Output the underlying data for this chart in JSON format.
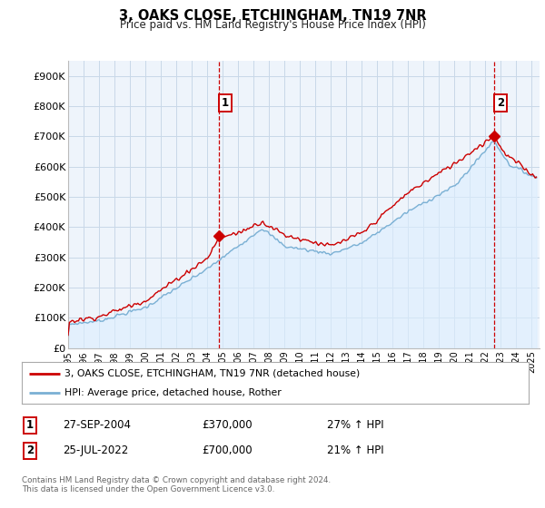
{
  "title": "3, OAKS CLOSE, ETCHINGHAM, TN19 7NR",
  "subtitle": "Price paid vs. HM Land Registry's House Price Index (HPI)",
  "ylabel_ticks": [
    "£0",
    "£100K",
    "£200K",
    "£300K",
    "£400K",
    "£500K",
    "£600K",
    "£700K",
    "£800K",
    "£900K"
  ],
  "ytick_values": [
    0,
    100000,
    200000,
    300000,
    400000,
    500000,
    600000,
    700000,
    800000,
    900000
  ],
  "ylim": [
    0,
    950000
  ],
  "xlim_start": 1995.0,
  "xlim_end": 2025.5,
  "hpi_color": "#7ab0d4",
  "price_color": "#cc0000",
  "hpi_fill_color": "#ddeeff",
  "marker1_x": 2004.74,
  "marker1_y": 370000,
  "marker2_x": 2022.56,
  "marker2_y": 700000,
  "annotation1_label": "1",
  "annotation2_label": "2",
  "legend_line1": "3, OAKS CLOSE, ETCHINGHAM, TN19 7NR (detached house)",
  "legend_line2": "HPI: Average price, detached house, Rother",
  "table_row1": [
    "1",
    "27-SEP-2004",
    "£370,000",
    "27% ↑ HPI"
  ],
  "table_row2": [
    "2",
    "25-JUL-2022",
    "£700,000",
    "21% ↑ HPI"
  ],
  "footnote": "Contains HM Land Registry data © Crown copyright and database right 2024.\nThis data is licensed under the Open Government Licence v3.0.",
  "background_color": "#ffffff",
  "chart_bg_color": "#eef4fb",
  "grid_color": "#c8d8e8"
}
